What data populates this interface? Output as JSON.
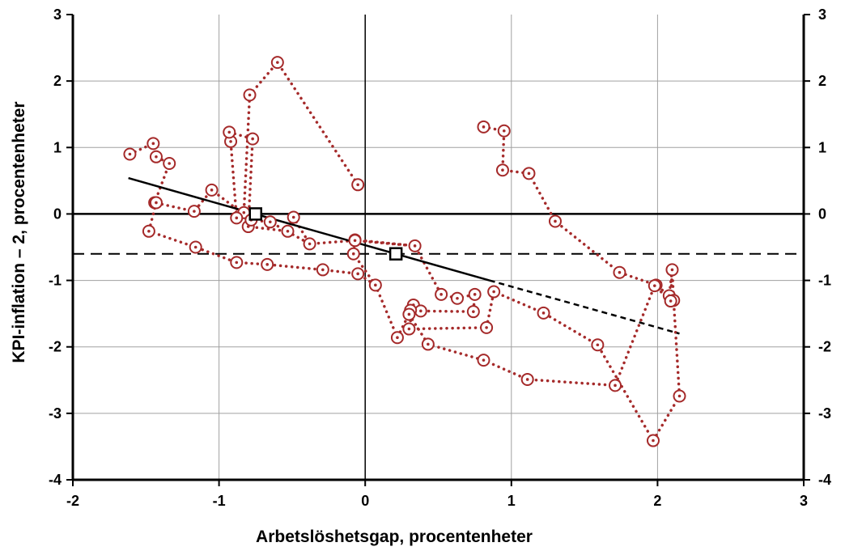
{
  "chart_data": {
    "type": "scatter",
    "xlabel": "Arbetslöshetsgap, procentenheter",
    "ylabel": "KPI-inflation – 2, procentenheter",
    "xlim": [
      -2,
      3
    ],
    "ylim": [
      -4,
      3
    ],
    "x_ticks": [
      "-2",
      "-1",
      "0",
      "1",
      "2",
      "3"
    ],
    "y_ticks": [
      "-4",
      "-3",
      "-2",
      "-1",
      "0",
      "1",
      "2",
      "3"
    ],
    "grid": true,
    "colors": {
      "path": "#a52a2a",
      "marker": "#a52a2a",
      "line": "#000000",
      "grid": "#a0a0a0"
    },
    "path_series": [
      [
        0.81,
        1.31
      ],
      [
        0.95,
        1.25
      ],
      [
        0.94,
        0.66
      ],
      [
        1.12,
        0.61
      ],
      [
        1.3,
        -0.11
      ],
      [
        1.74,
        -0.88
      ],
      [
        1.99,
        -1.07
      ],
      [
        2.08,
        -1.23
      ],
      [
        2.1,
        -0.84
      ],
      [
        2.11,
        -1.3
      ],
      [
        2.15,
        -2.74
      ],
      [
        1.97,
        -3.41
      ],
      [
        1.59,
        -1.97
      ],
      [
        1.22,
        -1.49
      ],
      [
        0.88,
        -1.17
      ],
      [
        0.83,
        -1.71
      ],
      [
        0.3,
        -1.73
      ],
      [
        0.33,
        -1.37
      ],
      [
        0.22,
        -1.86
      ],
      [
        0.07,
        -1.07
      ],
      [
        -0.08,
        -0.6
      ],
      [
        -0.07,
        -0.39
      ],
      [
        0.34,
        -0.48
      ],
      [
        0.52,
        -1.21
      ],
      [
        0.63,
        -1.27
      ],
      [
        0.75,
        -1.21
      ],
      [
        0.74,
        -1.47
      ],
      [
        0.38,
        -1.46
      ],
      [
        0.31,
        -1.45
      ],
      [
        0.3,
        -1.51
      ],
      [
        0.43,
        -1.96
      ],
      [
        0.81,
        -2.2
      ],
      [
        1.11,
        -2.49
      ],
      [
        1.71,
        -2.58
      ],
      [
        1.98,
        -1.08
      ],
      [
        2.09,
        -1.31
      ],
      [
        2.1,
        -0.84
      ]
    ],
    "path_series_2": [
      [
        -0.05,
        0.44
      ],
      [
        -0.6,
        2.28
      ],
      [
        -0.79,
        1.79
      ],
      [
        -0.83,
        0.02
      ],
      [
        -0.88,
        -0.06
      ],
      [
        -0.92,
        1.09
      ],
      [
        -0.93,
        1.23
      ],
      [
        -0.77,
        1.13
      ],
      [
        -0.8,
        -0.19
      ],
      [
        -0.53,
        -0.26
      ],
      [
        -0.49,
        -0.05
      ],
      [
        -0.38,
        -0.45
      ],
      [
        -0.07,
        -0.4
      ],
      [
        0.34,
        -0.48
      ]
    ],
    "path_series_3": [
      [
        -1.61,
        0.9
      ],
      [
        -1.45,
        1.06
      ],
      [
        -1.43,
        0.86
      ],
      [
        -1.34,
        0.76
      ],
      [
        -1.44,
        0.17
      ],
      [
        -1.17,
        0.04
      ],
      [
        -1.05,
        0.36
      ],
      [
        -0.78,
        -0.09
      ],
      [
        -0.65,
        -0.12
      ],
      [
        -0.38,
        -0.45
      ]
    ],
    "path_series_4": [
      [
        -1.43,
        0.17
      ],
      [
        -1.48,
        -0.26
      ],
      [
        -1.16,
        -0.5
      ],
      [
        -0.88,
        -0.73
      ],
      [
        -0.67,
        -0.76
      ],
      [
        -0.29,
        -0.84
      ],
      [
        -0.05,
        -0.9
      ],
      [
        0.07,
        -1.07
      ]
    ],
    "regression_line": {
      "x": [
        -1.62,
        0.85
      ],
      "y": [
        0.54,
        -1.0
      ]
    },
    "regression_extension": {
      "x": [
        0.85,
        2.15
      ],
      "y": [
        -1.0,
        -1.8
      ]
    },
    "reference_line_y": -0.6,
    "key_points": [
      [
        -0.75,
        0.0
      ],
      [
        0.21,
        -0.6
      ]
    ]
  }
}
